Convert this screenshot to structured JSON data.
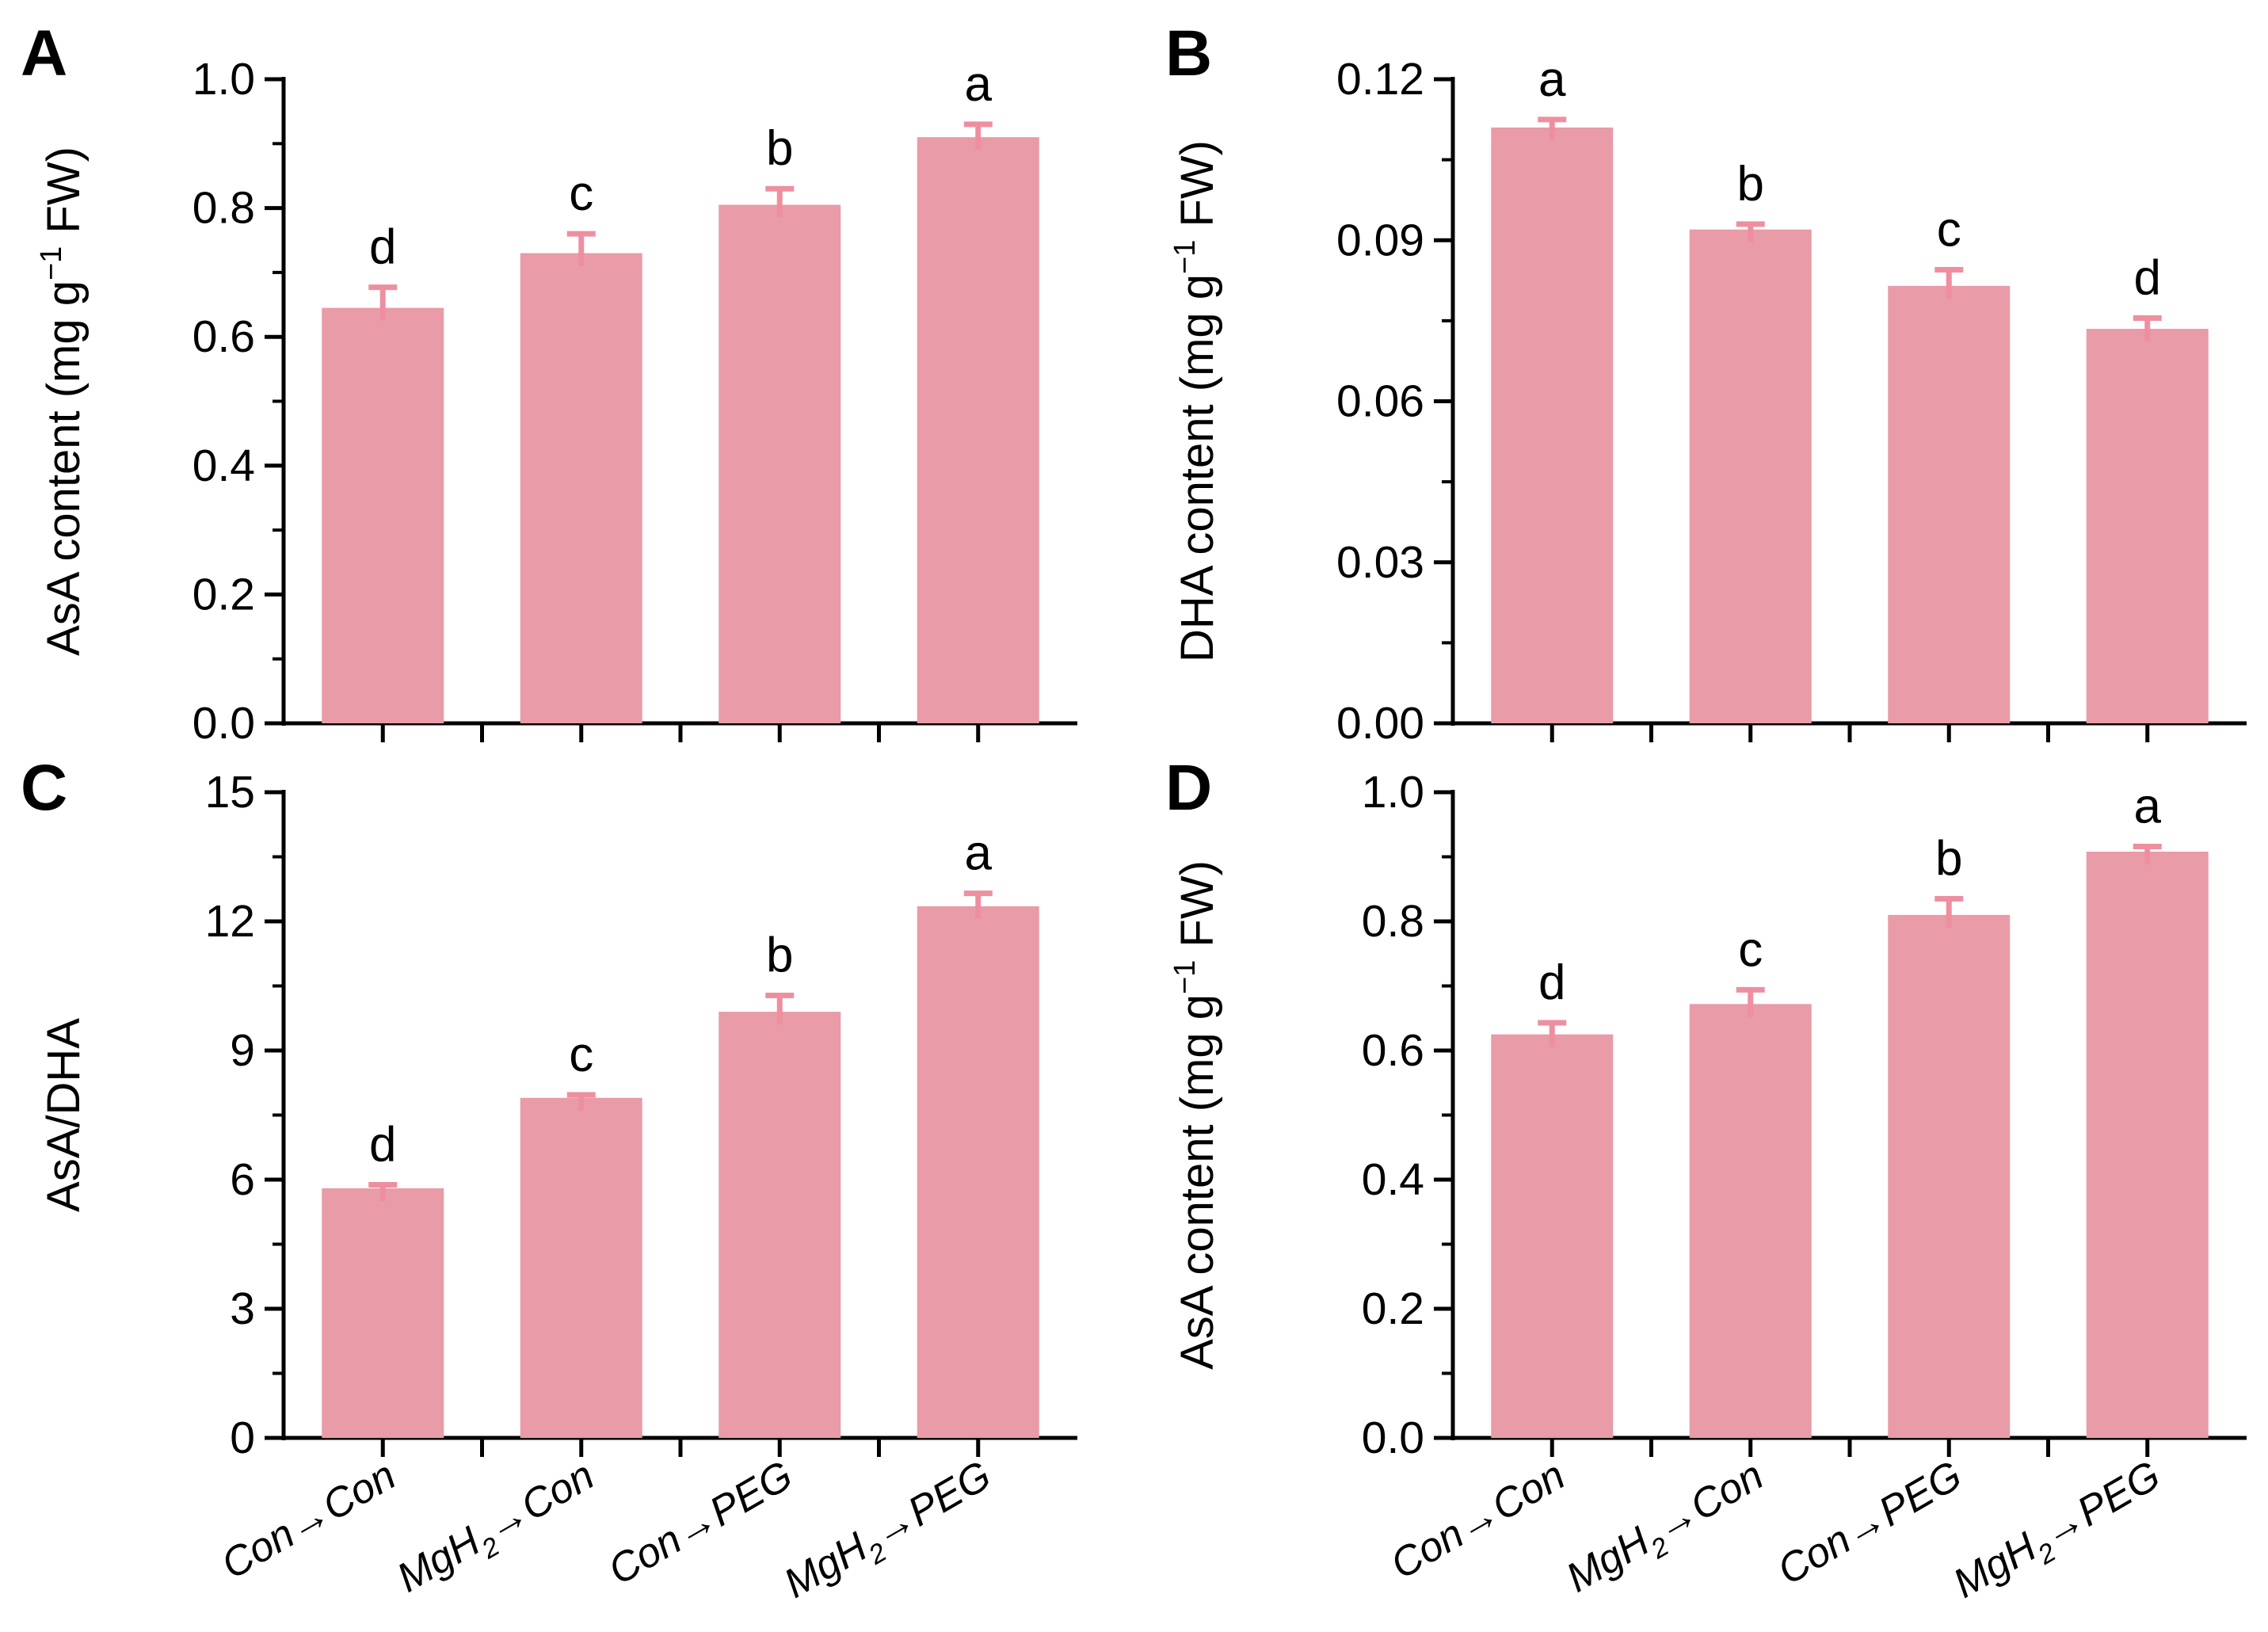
{
  "figure": {
    "style": {
      "background": "#ffffff",
      "bar_fill": "#E99BA8",
      "error_bar_color": "#EE8FA0",
      "axis_color": "#000000",
      "text_color": "#000000"
    },
    "panel_letters": [
      "A",
      "B",
      "C",
      "D"
    ]
  },
  "chart_data": [
    {
      "panel_label": "A",
      "type": "bar",
      "ylabel": "AsA content (mg g⁻¹ FW)",
      "ylabel_parts": [
        {
          "t": "AsA content (mg g"
        },
        {
          "t": "−1",
          "s": "sup"
        },
        {
          "t": " FW)"
        }
      ],
      "categories": [
        "Con→Con",
        "MgH₂→Con",
        "Con→PEG",
        "MgH₂→PEG"
      ],
      "category_parts": [
        [
          {
            "t": "Con→Con"
          }
        ],
        [
          {
            "t": "MgH"
          },
          {
            "t": "2",
            "s": "sub"
          },
          {
            "t": "→Con"
          }
        ],
        [
          {
            "t": "Con→PEG"
          }
        ],
        [
          {
            "t": "MgH"
          },
          {
            "t": "2",
            "s": "sub"
          },
          {
            "t": "→PEG"
          }
        ]
      ],
      "values": [
        0.645,
        0.73,
        0.805,
        0.91
      ],
      "errors": [
        0.032,
        0.03,
        0.025,
        0.02
      ],
      "sig_letters": [
        "d",
        "c",
        "b",
        "a"
      ],
      "ylim": [
        0,
        1.0
      ],
      "ytick_step": 0.2,
      "ytick_decimals": 1,
      "show_xlabels": false
    },
    {
      "panel_label": "B",
      "type": "bar",
      "ylabel": "DHA content (mg g⁻¹ FW)",
      "ylabel_parts": [
        {
          "t": "DHA content (mg g"
        },
        {
          "t": "−1",
          "s": "sup"
        },
        {
          "t": " FW)"
        }
      ],
      "categories": [
        "Con→Con",
        "MgH₂→Con",
        "Con→PEG",
        "MgH₂→PEG"
      ],
      "category_parts": [
        [
          {
            "t": "Con→Con"
          }
        ],
        [
          {
            "t": "MgH"
          },
          {
            "t": "2",
            "s": "sub"
          },
          {
            "t": "→Con"
          }
        ],
        [
          {
            "t": "Con→PEG"
          }
        ],
        [
          {
            "t": "MgH"
          },
          {
            "t": "2",
            "s": "sub"
          },
          {
            "t": "→PEG"
          }
        ]
      ],
      "values": [
        0.111,
        0.092,
        0.0815,
        0.0735
      ],
      "errors": [
        0.0015,
        0.001,
        0.003,
        0.002
      ],
      "sig_letters": [
        "a",
        "b",
        "c",
        "d"
      ],
      "ylim": [
        0,
        0.12
      ],
      "ytick_step": 0.03,
      "ytick_decimals": 2,
      "show_xlabels": false
    },
    {
      "panel_label": "C",
      "type": "bar",
      "ylabel": "AsA/DHA",
      "ylabel_parts": [
        {
          "t": "AsA/DHA"
        }
      ],
      "categories": [
        "Con→Con",
        "MgH₂→Con",
        "Con→PEG",
        "MgH₂→PEG"
      ],
      "category_parts": [
        [
          {
            "t": "Con→Con"
          }
        ],
        [
          {
            "t": "MgH"
          },
          {
            "t": "2",
            "s": "sub"
          },
          {
            "t": "→Con"
          }
        ],
        [
          {
            "t": "Con→PEG"
          }
        ],
        [
          {
            "t": "MgH"
          },
          {
            "t": "2",
            "s": "sub"
          },
          {
            "t": "→PEG"
          }
        ]
      ],
      "values": [
        5.8,
        7.9,
        9.9,
        12.35
      ],
      "errors": [
        0.08,
        0.07,
        0.38,
        0.3
      ],
      "sig_letters": [
        "d",
        "c",
        "b",
        "a"
      ],
      "ylim": [
        0,
        15
      ],
      "ytick_step": 3,
      "ytick_decimals": 0,
      "show_xlabels": true
    },
    {
      "panel_label": "D",
      "type": "bar",
      "ylabel": "AsA content (mg g⁻¹ FW)",
      "ylabel_parts": [
        {
          "t": "AsA content (mg g"
        },
        {
          "t": "−1",
          "s": "sup"
        },
        {
          "t": " FW)"
        }
      ],
      "categories": [
        "Con→Con",
        "MgH₂→Con",
        "Con→PEG",
        "MgH₂→PEG"
      ],
      "category_parts": [
        [
          {
            "t": "Con→Con"
          }
        ],
        [
          {
            "t": "MgH"
          },
          {
            "t": "2",
            "s": "sub"
          },
          {
            "t": "→Con"
          }
        ],
        [
          {
            "t": "Con→PEG"
          }
        ],
        [
          {
            "t": "MgH"
          },
          {
            "t": "2",
            "s": "sub"
          },
          {
            "t": "→PEG"
          }
        ]
      ],
      "values": [
        0.625,
        0.672,
        0.81,
        0.908
      ],
      "errors": [
        0.018,
        0.022,
        0.025,
        0.008
      ],
      "sig_letters": [
        "d",
        "c",
        "b",
        "a"
      ],
      "ylim": [
        0,
        1.0
      ],
      "ytick_step": 0.2,
      "ytick_decimals": 1,
      "show_xlabels": true
    }
  ]
}
